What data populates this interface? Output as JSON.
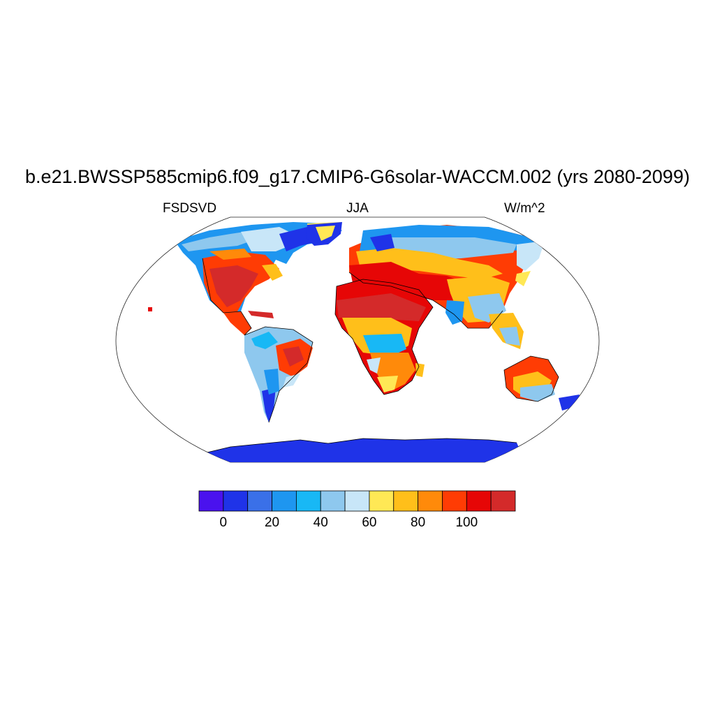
{
  "title": "b.e21.BWSSP585cmip6.f09_g17.CMIP6-G6solar-WACCM.002 (yrs 2080-2099)",
  "subtitle_left": "FSDSVD",
  "subtitle_center": "JJA",
  "subtitle_right": "W/m^2",
  "colorbar": {
    "colors": [
      "#4a12ee",
      "#1f33e8",
      "#3a70e8",
      "#1e96f0",
      "#18b8f5",
      "#8ec8ee",
      "#c8e6f8",
      "#ffe855",
      "#ffbf1a",
      "#ff8a0a",
      "#ff3c04",
      "#e60606",
      "#d42a2a"
    ],
    "tick_labels": [
      "0",
      "20",
      "40",
      "60",
      "80",
      "100"
    ],
    "tick_values": [
      0,
      20,
      40,
      60,
      80,
      100
    ],
    "min": -10,
    "max": 120,
    "step": 10
  },
  "map": {
    "projection": "Robinson",
    "ocean_color": "#ffffff",
    "coastline_color": "#000000"
  }
}
